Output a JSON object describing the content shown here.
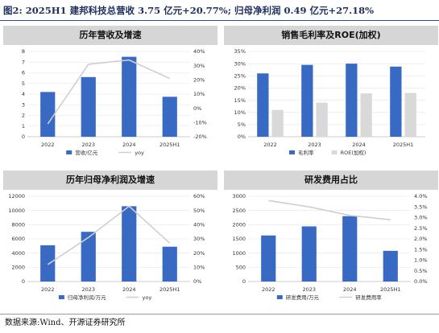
{
  "figure_title": "图2:  2025H1  建邦科技总营收 3.75  亿元+20.77%;  归母净利润  0.49 亿元+27.18%",
  "source": "数据来源:Wind、开源证券研究所",
  "colors": {
    "bar": "#3869c3",
    "line": "#cfcfcf",
    "bar_gray": "#d9d9d9",
    "header": "#d6d6d6"
  },
  "chart_data": [
    {
      "type": "bar",
      "title": "历年营收及增速",
      "categories": [
        "2022",
        "2023",
        "2024",
        "2025H1"
      ],
      "series": [
        {
          "name": "营收/亿元",
          "kind": "bar",
          "axis": "left",
          "values": [
            4.2,
            5.6,
            7.5,
            3.75
          ]
        },
        {
          "name": "yoy",
          "kind": "line",
          "axis": "right",
          "values": [
            -0.11,
            0.31,
            0.34,
            0.21
          ]
        }
      ],
      "left_axis": {
        "ticks": [
          "0",
          "1",
          "2",
          "3",
          "4",
          "5",
          "6",
          "7",
          "8"
        ],
        "min": 0,
        "max": 8
      },
      "right_axis": {
        "ticks": [
          "-20%",
          "-10%",
          "0%",
          "10%",
          "20%",
          "30%",
          "40%"
        ],
        "min": -0.2,
        "max": 0.4
      },
      "legend_position": "bottom"
    },
    {
      "type": "bar",
      "title": "销售毛利率及ROE(加权)",
      "categories": [
        "2022",
        "2023",
        "2024",
        "2025H1"
      ],
      "series": [
        {
          "name": "毛利率",
          "kind": "bar",
          "color": "#3869c3",
          "values": [
            0.26,
            0.295,
            0.3,
            0.288
          ]
        },
        {
          "name": "ROE(加权)",
          "kind": "bar",
          "color": "#d9d9d9",
          "values": [
            0.11,
            0.14,
            0.178,
            0.18
          ]
        }
      ],
      "left_axis": {
        "ticks": [
          "0%",
          "5%",
          "10%",
          "15%",
          "20%",
          "25%",
          "30%",
          "35%"
        ],
        "min": 0,
        "max": 0.35
      },
      "legend_position": "bottom"
    },
    {
      "type": "bar",
      "title": "历年归母净利润及增速",
      "categories": [
        "2022",
        "2023",
        "2024",
        "2025H1"
      ],
      "series": [
        {
          "name": "归母净利润/万元",
          "kind": "bar",
          "axis": "left",
          "values": [
            5100,
            7000,
            10600,
            4900
          ]
        },
        {
          "name": "yoy",
          "kind": "line",
          "axis": "right",
          "values": [
            0.12,
            0.31,
            0.53,
            0.27
          ]
        }
      ],
      "left_axis": {
        "ticks": [
          "0",
          "2000",
          "4000",
          "6000",
          "8000",
          "10000",
          "12000"
        ],
        "min": 0,
        "max": 12000
      },
      "right_axis": {
        "ticks": [
          "0%",
          "10%",
          "20%",
          "30%",
          "40%",
          "50%",
          "60%"
        ],
        "min": 0,
        "max": 0.6
      },
      "legend_position": "bottom"
    },
    {
      "type": "bar",
      "title": "研发费用占比",
      "categories": [
        "2022",
        "2023",
        "2024",
        "2025H1"
      ],
      "series": [
        {
          "name": "研发费用/万元",
          "kind": "bar",
          "axis": "left",
          "values": [
            1620,
            1940,
            2300,
            1080
          ]
        },
        {
          "name": "研发费用率",
          "kind": "line",
          "axis": "right",
          "values": [
            0.038,
            0.035,
            0.031,
            0.029
          ]
        }
      ],
      "left_axis": {
        "ticks": [
          "0",
          "500",
          "1000",
          "1500",
          "2000",
          "2500",
          "3000"
        ],
        "min": 0,
        "max": 3000
      },
      "right_axis": {
        "ticks": [
          "0.0%",
          "0.5%",
          "1.0%",
          "1.5%",
          "2.0%",
          "2.5%",
          "3.0%",
          "3.5%",
          "4.0%"
        ],
        "min": 0,
        "max": 0.04
      },
      "legend_position": "bottom"
    }
  ]
}
